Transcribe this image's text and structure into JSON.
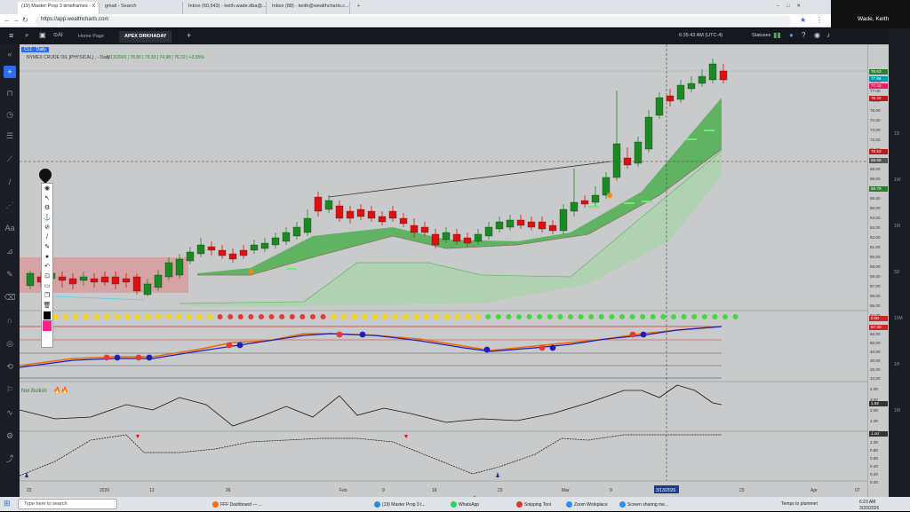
{
  "browser": {
    "tabs": [
      {
        "label": "(19) Master Prop 3 timeframes - X",
        "active": true
      },
      {
        "label": "gmail - Search",
        "active": false
      },
      {
        "label": "Inbox (60,543) - keith.wade.dba@...",
        "active": false
      },
      {
        "label": "Inbox (88) - keith@wealthcharts.c...",
        "active": false
      }
    ],
    "url": "https://app.wealthcharts.com",
    "zoom_user": "Wade, Keith"
  },
  "app": {
    "tabs": [
      {
        "label": "Home Page",
        "active": false
      },
      {
        "label": "APEX DRKHADAY",
        "active": true
      }
    ],
    "clock": "6:35:43 AM (UTC-4)",
    "status": "Statuses"
  },
  "chart": {
    "symbol_tag": "CL1 · Daily",
    "header": "NYMEX CRUDE OIL [PHYSICAL] , - Daily",
    "ohlc": "3/13/2026 | 78.80 | 79.33 | 74.98 | 76.32 | +3.55%",
    "indicator_labels": {
      "trend": "Net Bullish",
      "fire": "🔥🔥"
    },
    "price_labels": [
      "79.00",
      "78.00",
      "77.00",
      "76.00",
      "75.00",
      "74.00",
      "73.00",
      "72.00",
      "71.00",
      "70.00",
      "69.00",
      "68.00",
      "67.00",
      "66.00",
      "65.00",
      "64.00",
      "63.00",
      "62.00",
      "61.00",
      "60.00",
      "59.00",
      "58.00",
      "57.00",
      "56.00",
      "55.00",
      "54.00"
    ],
    "price_badges": [
      {
        "value": "78.63",
        "color": "#2e7d32"
      },
      {
        "value": "77.88",
        "color": "#0097a7"
      },
      {
        "value": "77.32",
        "color": "#e91e63"
      },
      {
        "value": "76.32",
        "color": "#b71c1c"
      },
      {
        "value": "70.53",
        "color": "#b71c1c"
      },
      {
        "value": "69.58",
        "color": "#555555"
      },
      {
        "value": "66.79",
        "color": "#2e7d32"
      }
    ],
    "crosshair_price": "69.58",
    "panel_labels": {
      "rsi_top": "0.00",
      "rsi_badge": "57.30",
      "osc_badge": "1.82",
      "stoch_badge": "1.00"
    },
    "rsi_scale": [
      "60.00",
      "50.00",
      "40.00",
      "30.00",
      "20.00",
      "10.00"
    ],
    "osc_scale": [
      "4.00",
      "3.00",
      "2.00",
      "1.00",
      "0.00"
    ],
    "stoch_scale": [
      "1.00",
      "0.80",
      "0.60",
      "0.40",
      "0.20",
      "0.00"
    ],
    "x_labels": [
      "22",
      "2026",
      "12",
      "26",
      "Feb",
      "9",
      "16",
      "23",
      "Mar",
      "9",
      "3/13/2026",
      "23",
      "Apr",
      "07"
    ],
    "crosshair_date": "3/13/2026",
    "right_tabs": [
      "1D",
      "1W",
      "1M",
      "5D",
      "10M",
      "1H",
      "1M"
    ]
  },
  "taskbar": {
    "search_placeholder": "Type here to search",
    "items": [
      "FFF Dashboard — ...",
      "(19) Master Prop 3 t...",
      "WhatsApp",
      "Snipping Tool",
      "Zoom Workplace",
      "Screen sharing me..."
    ],
    "weather": "Temps to plummet",
    "time": "6:23 AM",
    "date": "3/20/2026"
  },
  "colors": {
    "bull": "#1b8a22",
    "bear": "#e01010",
    "band": "#4caf50",
    "chart_bg": "#c9cacb"
  },
  "icons": [
    "menu-icon",
    "search-icon",
    "layout-icon",
    "clock-icon",
    "add-icon",
    "cursor-icon",
    "crosshair-icon",
    "trendline-icon",
    "text-icon",
    "measure-icon",
    "eye-icon",
    "lock-icon",
    "trash-icon"
  ]
}
